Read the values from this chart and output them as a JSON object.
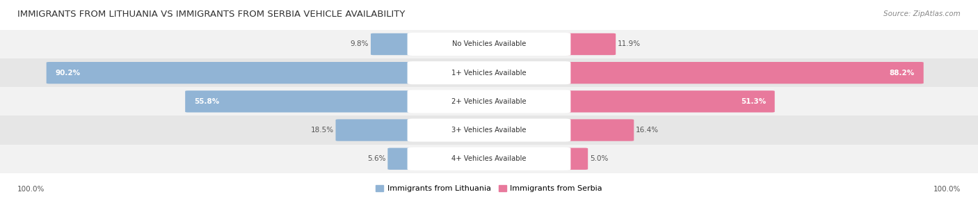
{
  "title": "IMMIGRANTS FROM LITHUANIA VS IMMIGRANTS FROM SERBIA VEHICLE AVAILABILITY",
  "source": "Source: ZipAtlas.com",
  "categories": [
    "No Vehicles Available",
    "1+ Vehicles Available",
    "2+ Vehicles Available",
    "3+ Vehicles Available",
    "4+ Vehicles Available"
  ],
  "lithuania_values": [
    9.8,
    90.2,
    55.8,
    18.5,
    5.6
  ],
  "serbia_values": [
    11.9,
    88.2,
    51.3,
    16.4,
    5.0
  ],
  "lithuania_color": "#91b4d5",
  "serbia_color": "#e8799c",
  "row_bg_even": "#f2f2f2",
  "row_bg_odd": "#e6e6e6",
  "label_color": "#555555",
  "title_color": "#333333",
  "legend_lithuania": "Immigrants from Lithuania",
  "legend_serbia": "Immigrants from Serbia",
  "max_value": 100.0,
  "figsize": [
    14.06,
    2.86
  ],
  "dpi": 100
}
